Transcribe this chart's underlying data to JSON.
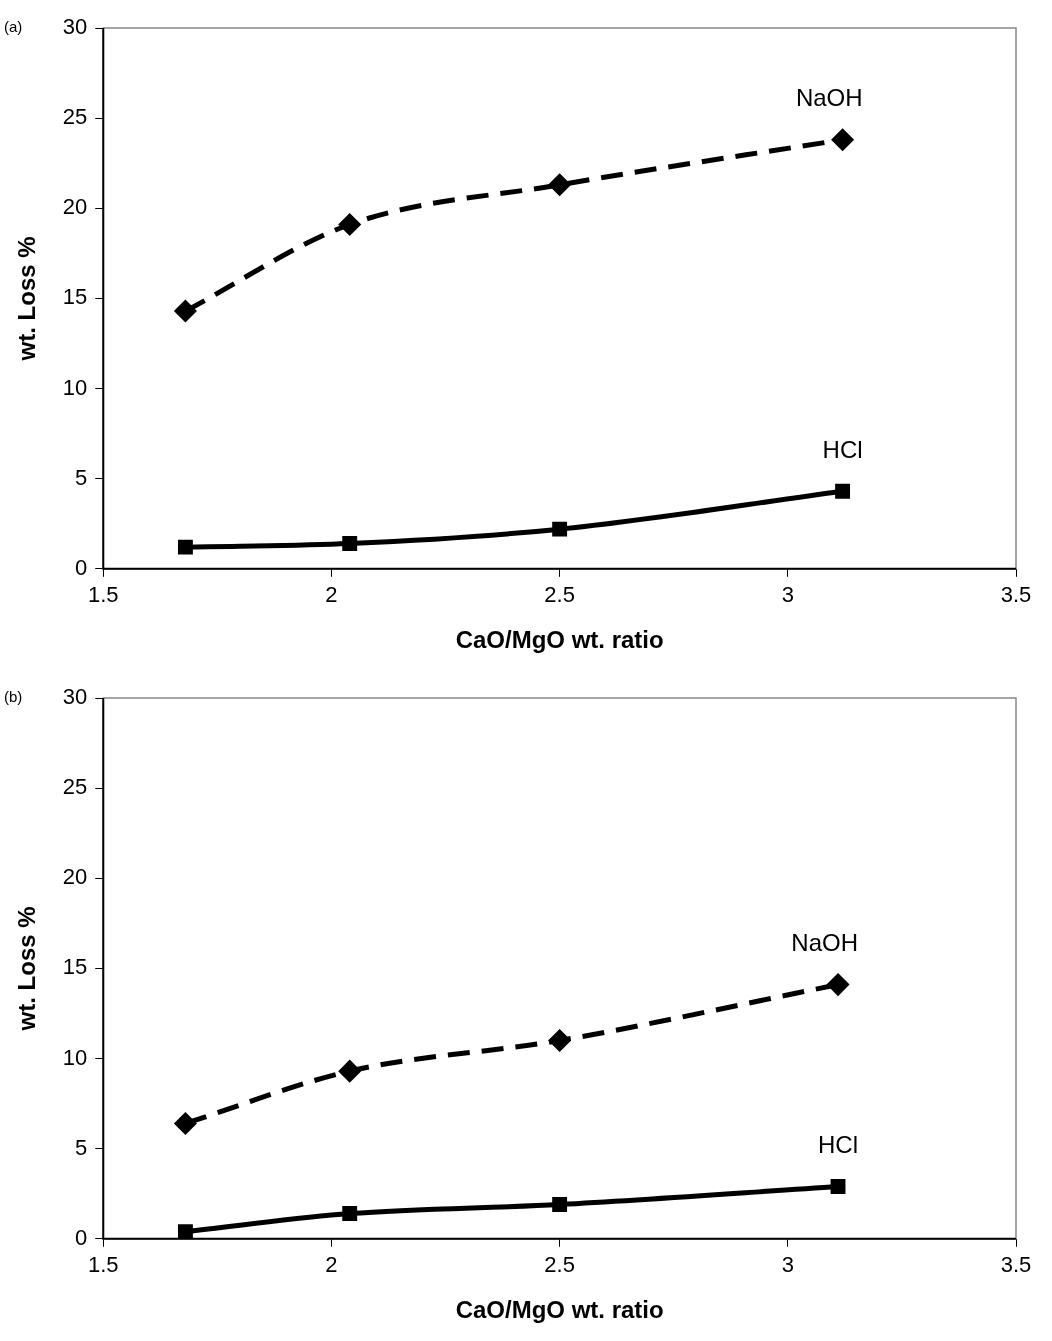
{
  "chart_data": [
    {
      "type": "line",
      "title": "(a)",
      "xlabel": "CaO/MgO wt. ratio",
      "ylabel": "wt. Loss %",
      "xlim": [
        1.5,
        3.5
      ],
      "xticks": [
        1.5,
        2,
        2.5,
        3,
        3.5
      ],
      "ylim": [
        0,
        30
      ],
      "yticks": [
        0,
        5,
        10,
        15,
        20,
        25,
        30
      ],
      "grid": false,
      "legend": false,
      "series": [
        {
          "name": "NaOH",
          "color": "#000000",
          "x": [
            1.68,
            2.04,
            2.5,
            3.12
          ],
          "values": [
            14.3,
            19.1,
            21.3,
            23.8
          ],
          "marker": "diamond",
          "line_style": "dashed"
        },
        {
          "name": "HCl",
          "color": "#000000",
          "x": [
            1.68,
            2.04,
            2.5,
            3.12
          ],
          "values": [
            1.2,
            1.4,
            2.2,
            4.3
          ],
          "marker": "square",
          "line_style": "solid"
        }
      ]
    },
    {
      "type": "line",
      "title": "(b)",
      "xlabel": "CaO/MgO wt. ratio",
      "ylabel": "wt. Loss %",
      "xlim": [
        1.5,
        3.5
      ],
      "xticks": [
        1.5,
        2,
        2.5,
        3,
        3.5
      ],
      "ylim": [
        0,
        30
      ],
      "yticks": [
        0,
        5,
        10,
        15,
        20,
        25,
        30
      ],
      "grid": false,
      "legend": false,
      "series": [
        {
          "name": "NaOH",
          "color": "#000000",
          "x": [
            1.68,
            2.04,
            2.5,
            3.11
          ],
          "values": [
            6.4,
            9.3,
            11.0,
            14.1
          ],
          "marker": "diamond",
          "line_style": "dashed"
        },
        {
          "name": "HCl",
          "color": "#000000",
          "x": [
            1.68,
            2.04,
            2.5,
            3.11
          ],
          "values": [
            0.4,
            1.4,
            1.9,
            2.9
          ],
          "marker": "square",
          "line_style": "solid"
        }
      ]
    }
  ]
}
